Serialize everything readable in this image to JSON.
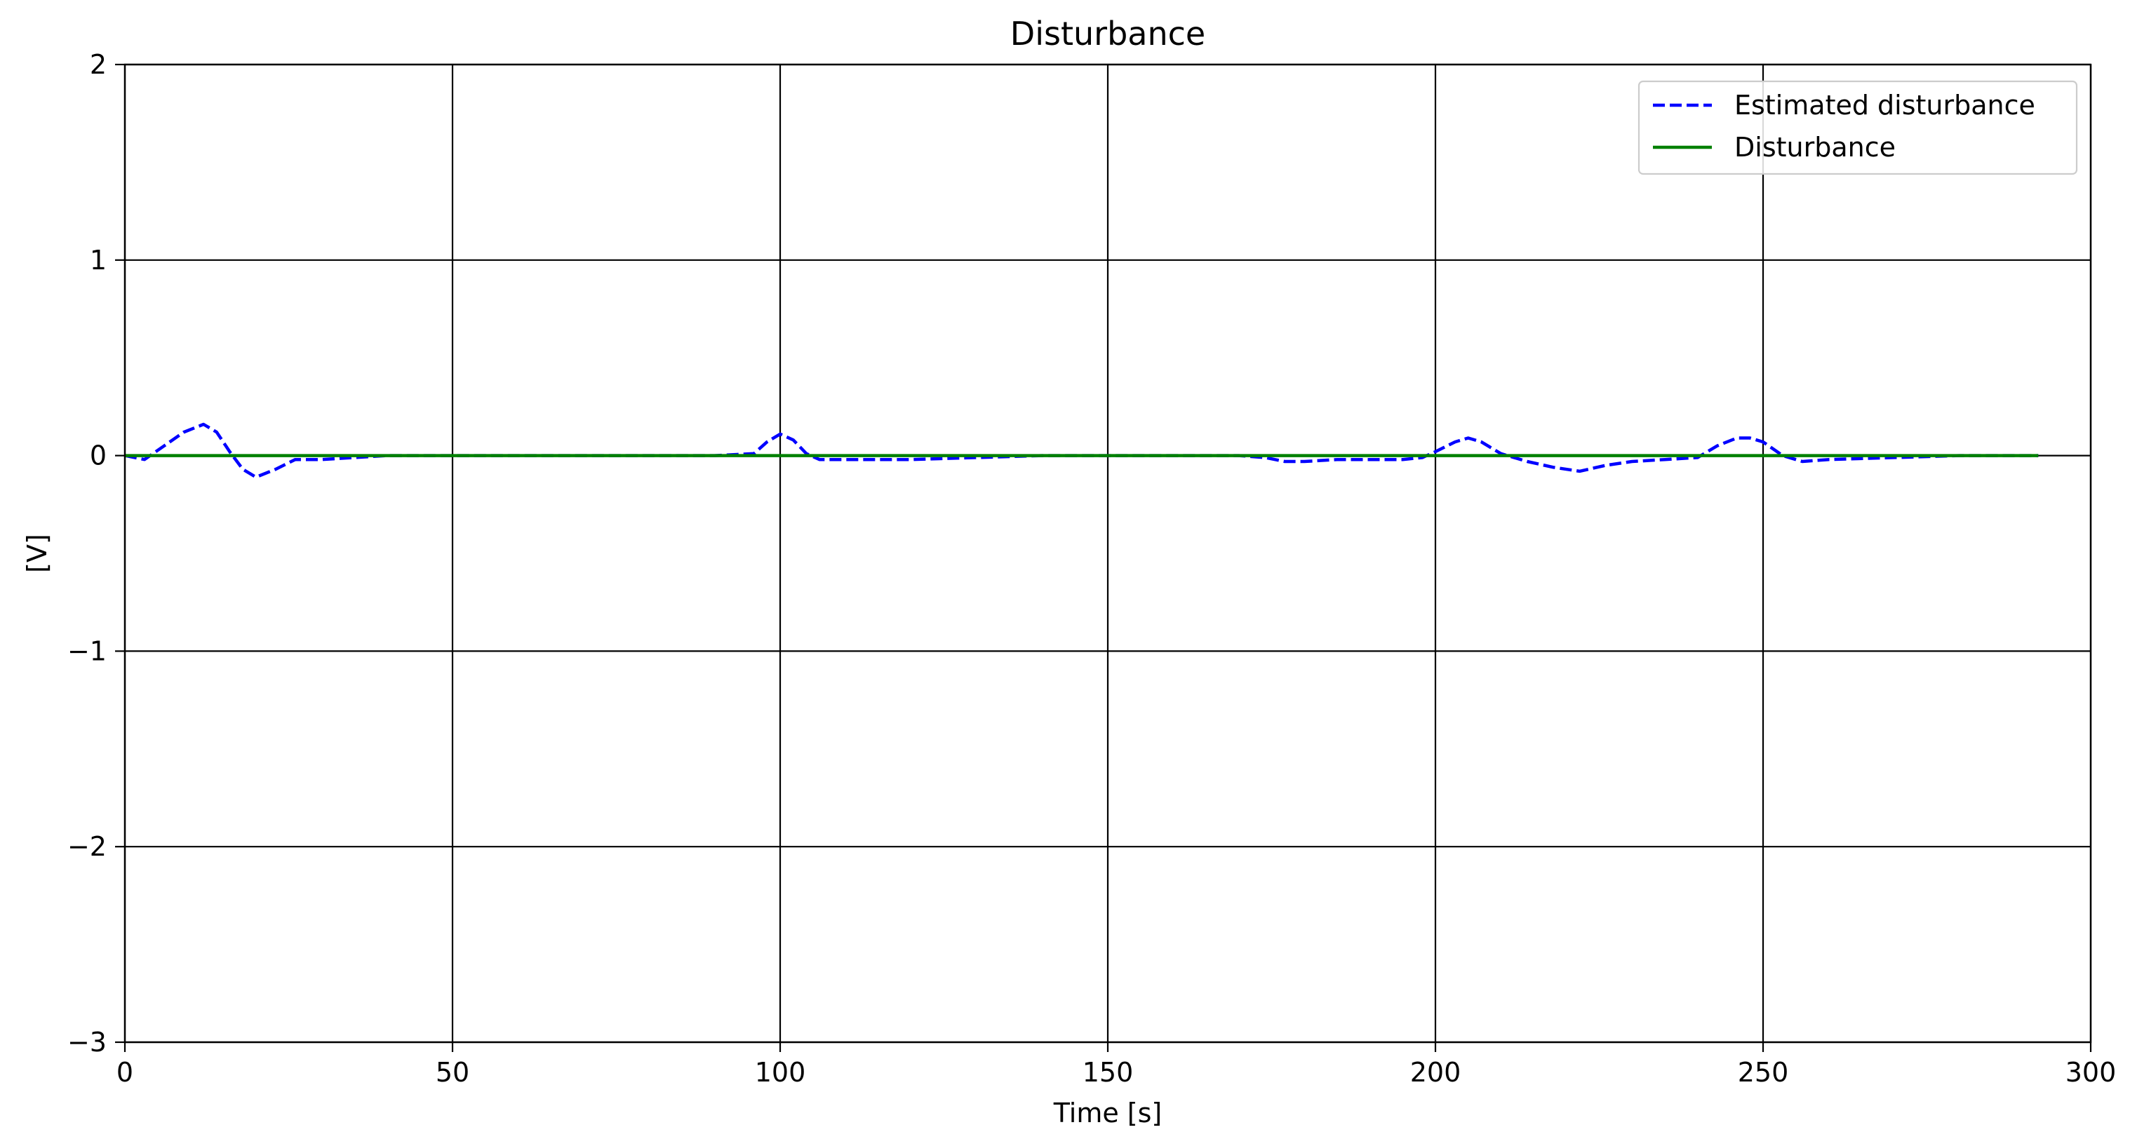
{
  "chart_data": {
    "type": "line",
    "title": "Disturbance",
    "xlabel": "Time [s]",
    "ylabel": "[V]",
    "xlim": [
      0,
      300
    ],
    "ylim": [
      -3,
      2
    ],
    "grid": true,
    "legend_position": "top-right",
    "x_ticks": [
      0,
      50,
      100,
      150,
      200,
      250,
      300
    ],
    "x_tick_labels": [
      "0",
      "50",
      "100",
      "150",
      "200",
      "250",
      "300"
    ],
    "y_ticks": [
      2,
      1,
      0,
      -1,
      -2,
      -3
    ],
    "y_tick_labels": [
      "2",
      "1",
      "0",
      "−1",
      "−2",
      "−3"
    ],
    "series": [
      {
        "name": "Estimated disturbance",
        "color": "#0000ff",
        "style": "dashed",
        "x": [
          0,
          3,
          6,
          9,
          12,
          14,
          16,
          18,
          20,
          23,
          26,
          30,
          35,
          40,
          50,
          60,
          70,
          80,
          90,
          96,
          98,
          100,
          102,
          104,
          106,
          110,
          120,
          130,
          140,
          150,
          160,
          170,
          174,
          177,
          180,
          185,
          190,
          195,
          198,
          200,
          203,
          205,
          207,
          210,
          214,
          218,
          222,
          226,
          230,
          235,
          240,
          243,
          246,
          248,
          250,
          253,
          256,
          260,
          270,
          280,
          292
        ],
        "y": [
          0,
          -0.02,
          0.05,
          0.12,
          0.16,
          0.12,
          0.02,
          -0.07,
          -0.11,
          -0.07,
          -0.02,
          -0.02,
          -0.01,
          0,
          0,
          0,
          0,
          0,
          0,
          0.01,
          0.07,
          0.11,
          0.08,
          0.01,
          -0.02,
          -0.02,
          -0.02,
          -0.01,
          0,
          0,
          0,
          0,
          -0.01,
          -0.03,
          -0.03,
          -0.02,
          -0.02,
          -0.02,
          -0.01,
          0.02,
          0.07,
          0.09,
          0.07,
          0.01,
          -0.03,
          -0.06,
          -0.08,
          -0.05,
          -0.03,
          -0.02,
          -0.01,
          0.05,
          0.09,
          0.09,
          0.07,
          0,
          -0.03,
          -0.02,
          -0.01,
          0,
          0
        ]
      },
      {
        "name": "Disturbance",
        "color": "#008000",
        "style": "solid",
        "x": [
          0,
          292
        ],
        "y": [
          0,
          0
        ]
      }
    ]
  }
}
